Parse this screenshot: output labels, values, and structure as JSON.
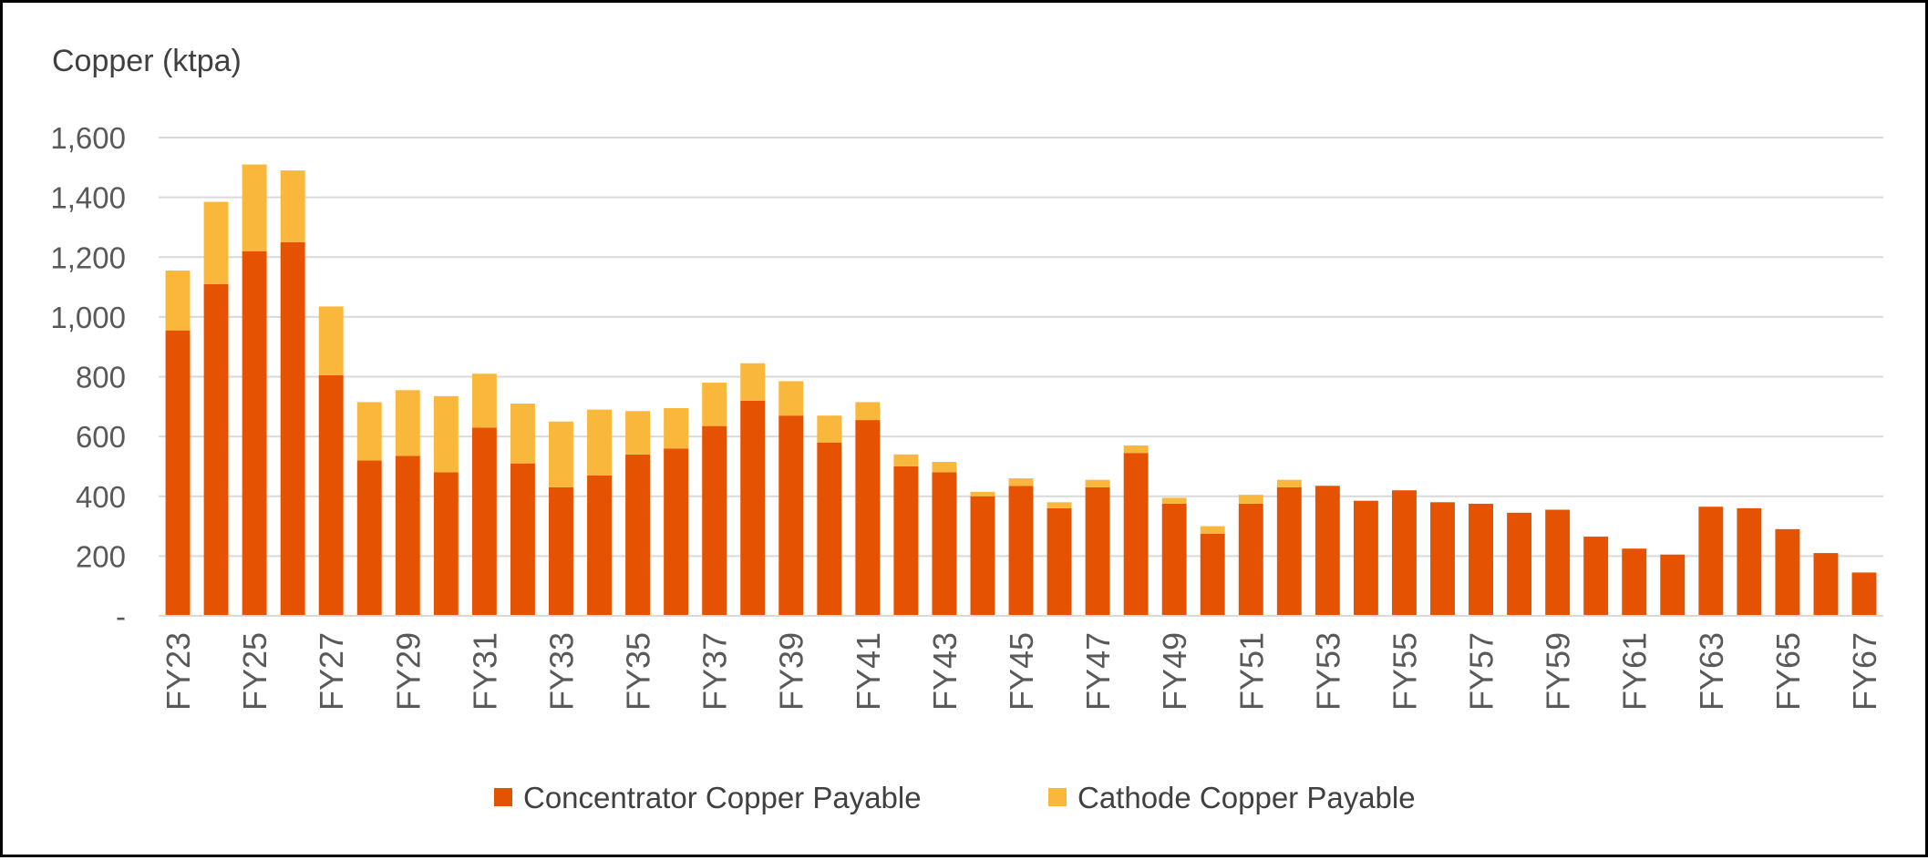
{
  "chart_data": {
    "type": "bar",
    "stacked": true,
    "title": "",
    "ylabel": "Copper (ktpa)",
    "xlabel": "",
    "ylim": [
      0,
      1600
    ],
    "yticks": [
      0,
      200,
      400,
      600,
      800,
      1000,
      1200,
      1400,
      1600
    ],
    "ytick_labels": [
      "-",
      "200",
      "400",
      "600",
      "800",
      "1,000",
      "1,200",
      "1,400",
      "1,600"
    ],
    "grid": true,
    "legend_position": "bottom",
    "categories": [
      "FY23",
      "FY24",
      "FY25",
      "FY26",
      "FY27",
      "FY28",
      "FY29",
      "FY30",
      "FY31",
      "FY32",
      "FY33",
      "FY34",
      "FY35",
      "FY36",
      "FY37",
      "FY38",
      "FY39",
      "FY40",
      "FY41",
      "FY42",
      "FY43",
      "FY44",
      "FY45",
      "FY46",
      "FY47",
      "FY48",
      "FY49",
      "FY50",
      "FY51",
      "FY52",
      "FY53",
      "FY54",
      "FY55",
      "FY56",
      "FY57",
      "FY58",
      "FY59",
      "FY60",
      "FY61",
      "FY62",
      "FY63",
      "FY64",
      "FY65",
      "FY66",
      "FY67"
    ],
    "x_tick_labels_shown": [
      "FY23",
      "FY25",
      "FY27",
      "FY29",
      "FY31",
      "FY33",
      "FY35",
      "FY37",
      "FY39",
      "FY41",
      "FY43",
      "FY45",
      "FY47",
      "FY49",
      "FY51",
      "FY53",
      "FY55",
      "FY57",
      "FY59",
      "FY61",
      "FY63",
      "FY65",
      "FY67"
    ],
    "series": [
      {
        "name": "Concentrator Copper Payable",
        "color": "#E55302",
        "values": [
          955,
          1110,
          1220,
          1250,
          805,
          520,
          535,
          480,
          630,
          510,
          430,
          470,
          540,
          560,
          635,
          720,
          670,
          580,
          655,
          500,
          480,
          400,
          435,
          360,
          430,
          545,
          375,
          275,
          375,
          430,
          435,
          385,
          420,
          380,
          375,
          345,
          355,
          265,
          225,
          205,
          365,
          360,
          290,
          210,
          145
        ]
      },
      {
        "name": "Cathode Copper Payable",
        "color": "#F9B83C",
        "values": [
          200,
          275,
          290,
          240,
          230,
          195,
          220,
          255,
          180,
          200,
          220,
          220,
          145,
          135,
          145,
          125,
          115,
          90,
          60,
          40,
          35,
          15,
          25,
          20,
          25,
          25,
          20,
          25,
          30,
          25,
          0,
          0,
          0,
          0,
          0,
          0,
          0,
          0,
          0,
          0,
          0,
          0,
          0,
          0,
          0
        ]
      }
    ]
  }
}
